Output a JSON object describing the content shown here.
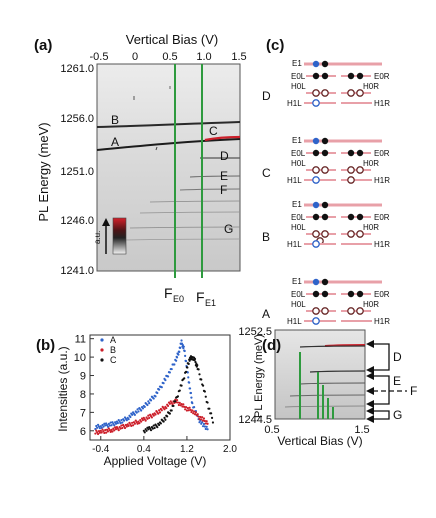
{
  "colors": {
    "green": "#2e9a3e",
    "red": "#cc1f2a",
    "pink": "#e8a0a8",
    "blue": "#2f63c9",
    "orange": "#e0a06a",
    "dark": "#111111"
  },
  "panel_a": {
    "label": "(a)",
    "xlabel": "Vertical Bias (V)",
    "ylabel": "PL Energy (meV)",
    "xticks": [
      "-0.5",
      "0",
      "0.5",
      "1.0",
      "1.5"
    ],
    "yticks": [
      "1261.0",
      "1256.0",
      "1251.0",
      "1246.0",
      "1241.0"
    ],
    "line_labels": [
      "B",
      "A",
      "C",
      "D",
      "E",
      "F",
      "G"
    ],
    "colorbar_label": "a.u.",
    "marker_E0": "E0",
    "marker_E1": "E1",
    "marker_F": "F"
  },
  "panel_b": {
    "label": "(b)",
    "ylabel": "Intensities (a.u.)",
    "xlabel": "Applied Voltage (V)"
  },
  "panel_c": {
    "label": "(c)",
    "rows": [
      "D",
      "C",
      "B",
      "A"
    ],
    "E1": "E1",
    "E0L": "E0L",
    "E0R": "E0R",
    "H0L": "H0L",
    "H0R": "H0R",
    "H1L": "H1L",
    "H1R": "H1R"
  },
  "panel_d": {
    "label": "(d)",
    "ylabel": "PL Energy (meV)",
    "ytop": "1252.5",
    "ybottom": "1244.5",
    "xleft": "0.5",
    "xright": "1.5",
    "xlabel": "Vertical Bias (V)",
    "arrow_labels": [
      "D",
      "E",
      "F",
      "G"
    ]
  },
  "chart_data": [
    {
      "type": "line",
      "xlabel": "Applied Voltage (V)",
      "ylabel": "Intensities (a.u.)",
      "xlim": [
        -0.6,
        2.0
      ],
      "ylim": [
        5.5,
        11.2
      ],
      "xticks": [
        -0.4,
        0.4,
        1.2,
        2.0
      ],
      "xtick_labels": [
        "-0.4",
        "0.4",
        "1.2",
        "2.0"
      ],
      "yticks": [
        6,
        7,
        8,
        9,
        10,
        11
      ],
      "legend_position": "top-left",
      "series": [
        {
          "name": "A",
          "color": "#2f63c9",
          "x": [
            -0.5,
            -0.4,
            -0.3,
            -0.2,
            -0.1,
            0.0,
            0.1,
            0.2,
            0.3,
            0.4,
            0.5,
            0.6,
            0.7,
            0.8,
            0.9,
            1.0,
            1.05,
            1.1,
            1.15,
            1.2,
            1.25,
            1.3,
            1.4,
            1.5,
            1.6
          ],
          "y": [
            6.2,
            6.25,
            6.3,
            6.35,
            6.45,
            6.55,
            6.7,
            6.9,
            7.1,
            7.3,
            7.6,
            7.9,
            8.3,
            8.8,
            9.3,
            9.9,
            10.3,
            10.8,
            10.4,
            9.4,
            8.4,
            7.5,
            6.7,
            6.3,
            6.1
          ]
        },
        {
          "name": "B",
          "color": "#cc1f2a",
          "x": [
            -0.5,
            -0.4,
            -0.3,
            -0.2,
            -0.1,
            0.0,
            0.1,
            0.2,
            0.3,
            0.4,
            0.5,
            0.6,
            0.7,
            0.8,
            0.9,
            1.0,
            1.1,
            1.2,
            1.3,
            1.4,
            1.5,
            1.6
          ],
          "y": [
            5.9,
            5.95,
            6.0,
            6.05,
            6.1,
            6.2,
            6.3,
            6.4,
            6.5,
            6.6,
            6.75,
            6.9,
            7.1,
            7.3,
            7.5,
            7.6,
            7.4,
            7.2,
            7.1,
            6.8,
            6.6,
            6.4
          ]
        },
        {
          "name": "C",
          "color": "#111111",
          "x": [
            0.4,
            0.5,
            0.6,
            0.7,
            0.8,
            0.9,
            1.0,
            1.1,
            1.2,
            1.25,
            1.3,
            1.35,
            1.4,
            1.5,
            1.6,
            1.7
          ],
          "y": [
            6.0,
            6.1,
            6.2,
            6.4,
            6.7,
            7.1,
            7.7,
            8.5,
            9.4,
            9.9,
            10.0,
            9.8,
            9.4,
            8.4,
            7.3,
            6.4
          ]
        }
      ]
    },
    {
      "type": "heatmap",
      "xlabel": "Vertical Bias (V)",
      "ylabel": "PL Energy (meV)",
      "xlim": [
        -0.5,
        1.5
      ],
      "ylim": [
        1241.0,
        1261.0
      ],
      "vertical_markers": [
        {
          "name": "E0",
          "x": 0.65
        },
        {
          "name": "E1",
          "x": 1.0
        }
      ]
    },
    {
      "type": "heatmap",
      "xlabel": "Vertical Bias (V)",
      "ylabel": "PL Energy (meV)",
      "xlim": [
        0.5,
        1.5
      ],
      "ylim": [
        1244.5,
        1252.5
      ]
    }
  ]
}
